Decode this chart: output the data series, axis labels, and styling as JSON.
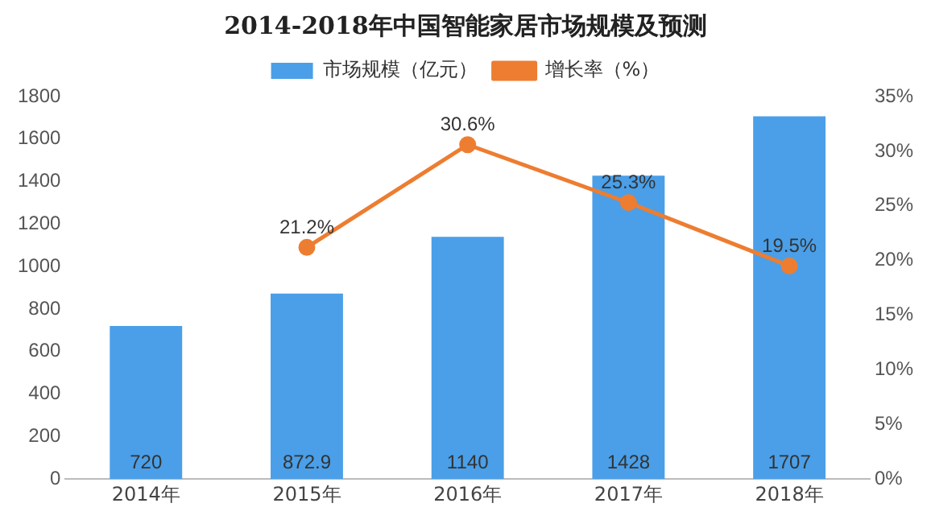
{
  "chart_data": {
    "type": "bar",
    "title": "2014-2018年中国智能家居市场规模及预测",
    "categories": [
      "2014年",
      "2015年",
      "2016年",
      "2017年",
      "2018年"
    ],
    "series": [
      {
        "name": "市场规模（亿元）",
        "color": "#4a9fe8",
        "values": [
          720,
          872.9,
          1140,
          1428,
          1707
        ]
      },
      {
        "name": "增长率（%）",
        "type": "line",
        "axis": "y2",
        "color": "#ed7d31",
        "marker": "circle",
        "values": [
          null,
          21.2,
          30.6,
          25.3,
          19.5
        ],
        "value_labels": [
          null,
          "21.2%",
          "30.6%",
          "25.3%",
          "19.5%"
        ]
      }
    ],
    "ylim": [
      0,
      1800
    ],
    "yticks": [
      0,
      200,
      400,
      600,
      800,
      1000,
      1200,
      1400,
      1600,
      1800
    ],
    "y2lim": [
      0,
      35
    ],
    "y2ticks": [
      {
        "value": 0,
        "label": "0%"
      },
      {
        "value": 5,
        "label": "5%"
      },
      {
        "value": 10,
        "label": "10%"
      },
      {
        "value": 15,
        "label": "15%"
      },
      {
        "value": 20,
        "label": "20%"
      },
      {
        "value": 25,
        "label": "25%"
      },
      {
        "value": 30,
        "label": "30%"
      },
      {
        "value": 35,
        "label": "35%"
      }
    ],
    "data_labels": true,
    "grid": false,
    "legend": "top"
  }
}
